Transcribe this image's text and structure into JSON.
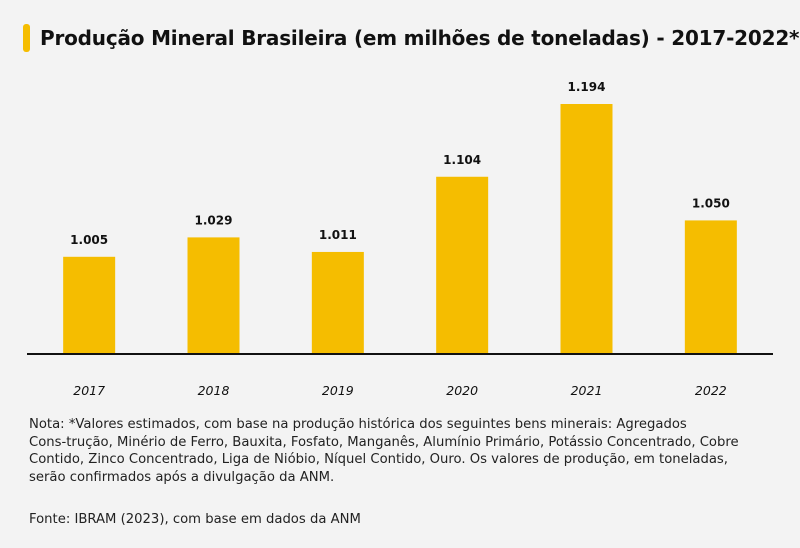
{
  "title": "Produção Mineral Brasileira (em milhões de toneladas) - 2017-2022*",
  "accent_color": "#f5bd00",
  "note_lines": [
    "Nota: *Valores estimados, com base na produção histórica dos seguintes bens minerais: Agregados",
    "Cons-trução, Minério de Ferro, Bauxita, Fosfato, Manganês, Alumínio Primário, Potássio Concentrado, Cobre",
    "Contido, Zinco Concentrado, Liga de Nióbio, Níquel Contido, Ouro. Os valores de produção, em toneladas,",
    "serão confirmados após a divulgação da ANM."
  ],
  "source": "Fonte: IBRAM (2023), com base em dados da ANM",
  "chart_data": {
    "type": "bar",
    "title": "Produção Mineral Brasileira (em milhões de toneladas) - 2017-2022*",
    "xlabel": "",
    "ylabel": "",
    "categories": [
      "2017",
      "2018",
      "2019",
      "2020",
      "2021",
      "2022"
    ],
    "values": [
      1005,
      1029,
      1011,
      1104,
      1194,
      1050
    ],
    "value_labels": [
      "1.005",
      "1.029",
      "1.011",
      "1.104",
      "1.194",
      "1.050"
    ],
    "ylim": [
      886,
      1194
    ],
    "grid": false,
    "legend": "none",
    "bar_color": "#f5bd00"
  }
}
